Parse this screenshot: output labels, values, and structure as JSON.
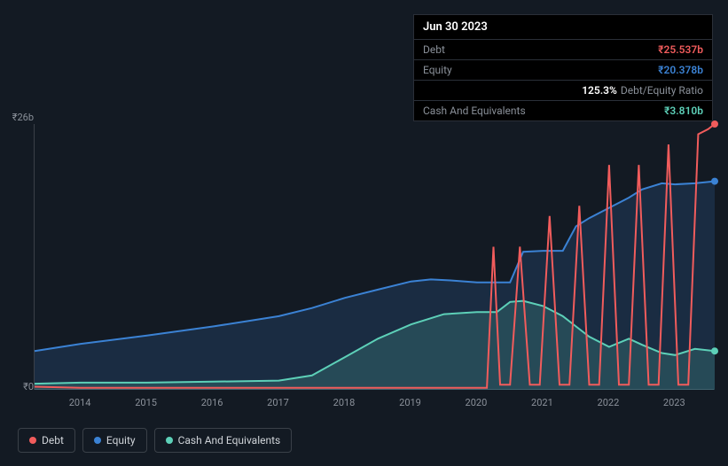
{
  "tooltip": {
    "date": "Jun 30 2023",
    "rows": [
      {
        "label": "Debt",
        "value": "₹25.537b",
        "color": "#f15c5c"
      },
      {
        "label": "Equity",
        "value": "₹20.378b",
        "color": "#3b82d4"
      },
      {
        "label": "",
        "ratio_val": "125.3%",
        "ratio_lbl": "Debt/Equity Ratio"
      },
      {
        "label": "Cash And Equivalents",
        "value": "₹3.810b",
        "color": "#5dd0b8"
      }
    ]
  },
  "chart": {
    "y_top_label": "₹26b",
    "y_bottom_label": "₹0",
    "y_max": 26,
    "x_labels": [
      "2014",
      "2015",
      "2016",
      "2017",
      "2018",
      "2019",
      "2020",
      "2021",
      "2022",
      "2023"
    ],
    "x_min": 2013.3,
    "x_max": 2023.6,
    "series": {
      "debt": {
        "color": "#f15c5c",
        "fill": "rgba(241,92,92,0.10)",
        "width": 2,
        "data": [
          [
            2013.3,
            0.3
          ],
          [
            2014,
            0.2
          ],
          [
            2015,
            0.2
          ],
          [
            2016,
            0.2
          ],
          [
            2017,
            0.2
          ],
          [
            2018,
            0.2
          ],
          [
            2019,
            0.2
          ],
          [
            2020,
            0.2
          ],
          [
            2020.15,
            0.2
          ],
          [
            2020.25,
            14
          ],
          [
            2020.35,
            0.5
          ],
          [
            2020.5,
            0.5
          ],
          [
            2020.65,
            14
          ],
          [
            2020.8,
            0.5
          ],
          [
            2020.95,
            0.5
          ],
          [
            2021.1,
            17
          ],
          [
            2021.25,
            0.5
          ],
          [
            2021.4,
            0.5
          ],
          [
            2021.55,
            18
          ],
          [
            2021.7,
            0.5
          ],
          [
            2021.85,
            0.5
          ],
          [
            2022.0,
            22
          ],
          [
            2022.15,
            0.5
          ],
          [
            2022.3,
            0.5
          ],
          [
            2022.45,
            22
          ],
          [
            2022.6,
            0.5
          ],
          [
            2022.75,
            0.5
          ],
          [
            2022.9,
            24
          ],
          [
            2023.05,
            0.5
          ],
          [
            2023.2,
            0.5
          ],
          [
            2023.35,
            25
          ],
          [
            2023.5,
            25.5
          ],
          [
            2023.6,
            26
          ]
        ]
      },
      "equity": {
        "color": "#3b82d4",
        "fill": "rgba(59,130,212,0.18)",
        "width": 2,
        "data": [
          [
            2013.3,
            3.8
          ],
          [
            2014,
            4.5
          ],
          [
            2015,
            5.3
          ],
          [
            2016,
            6.2
          ],
          [
            2017,
            7.2
          ],
          [
            2017.5,
            8.0
          ],
          [
            2018,
            9.0
          ],
          [
            2018.5,
            9.8
          ],
          [
            2019,
            10.6
          ],
          [
            2019.3,
            10.8
          ],
          [
            2019.6,
            10.7
          ],
          [
            2020,
            10.5
          ],
          [
            2020.3,
            10.5
          ],
          [
            2020.5,
            10.5
          ],
          [
            2020.7,
            13.5
          ],
          [
            2021,
            13.6
          ],
          [
            2021.3,
            13.6
          ],
          [
            2021.5,
            16.0
          ],
          [
            2021.7,
            16.8
          ],
          [
            2022,
            17.8
          ],
          [
            2022.3,
            18.8
          ],
          [
            2022.5,
            19.6
          ],
          [
            2022.8,
            20.2
          ],
          [
            2023,
            20.1
          ],
          [
            2023.3,
            20.2
          ],
          [
            2023.6,
            20.4
          ]
        ]
      },
      "cash": {
        "color": "#5dd0b8",
        "fill": "rgba(93,208,184,0.18)",
        "width": 2,
        "data": [
          [
            2013.3,
            0.6
          ],
          [
            2014,
            0.7
          ],
          [
            2015,
            0.7
          ],
          [
            2016,
            0.8
          ],
          [
            2017,
            0.9
          ],
          [
            2017.5,
            1.4
          ],
          [
            2018,
            3.2
          ],
          [
            2018.5,
            5.0
          ],
          [
            2019,
            6.4
          ],
          [
            2019.5,
            7.4
          ],
          [
            2020,
            7.6
          ],
          [
            2020.3,
            7.6
          ],
          [
            2020.5,
            8.6
          ],
          [
            2020.7,
            8.7
          ],
          [
            2021,
            8.2
          ],
          [
            2021.3,
            7.2
          ],
          [
            2021.5,
            6.2
          ],
          [
            2021.7,
            5.2
          ],
          [
            2022,
            4.2
          ],
          [
            2022.3,
            5.0
          ],
          [
            2022.5,
            4.4
          ],
          [
            2022.8,
            3.6
          ],
          [
            2023,
            3.4
          ],
          [
            2023.3,
            4.0
          ],
          [
            2023.6,
            3.8
          ]
        ]
      }
    }
  },
  "legend": [
    {
      "label": "Debt",
      "color": "#f15c5c"
    },
    {
      "label": "Equity",
      "color": "#3b82d4"
    },
    {
      "label": "Cash And Equivalents",
      "color": "#5dd0b8"
    }
  ]
}
